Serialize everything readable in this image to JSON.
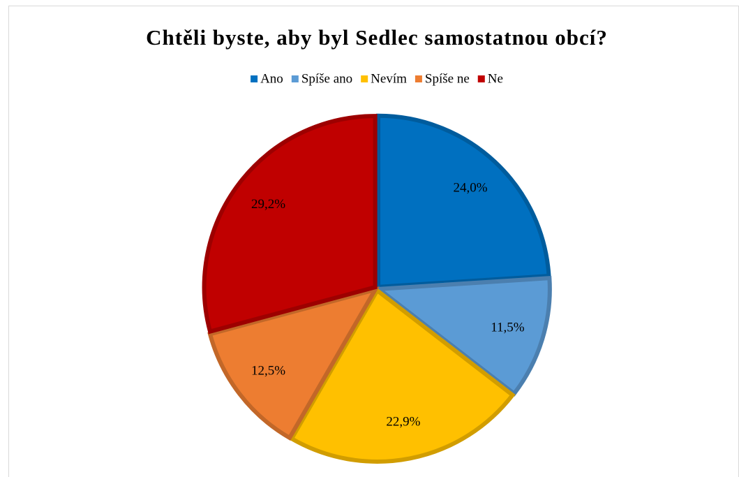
{
  "chart_data": {
    "type": "pie",
    "title": "Chtěli byste, aby byl Sedlec samostatnou obcí?",
    "categories": [
      "Ano",
      "Spíše ano",
      "Nevím",
      "Spíše ne",
      "Ne"
    ],
    "values": [
      24.0,
      11.5,
      22.9,
      12.5,
      29.2
    ],
    "value_labels": [
      "24,0%",
      "11,5%",
      "22,9%",
      "12,5%",
      "29,2%"
    ],
    "colors": [
      "#0070c0",
      "#5b9bd5",
      "#ffc000",
      "#ed7d31",
      "#c00000"
    ],
    "legend": "top"
  }
}
